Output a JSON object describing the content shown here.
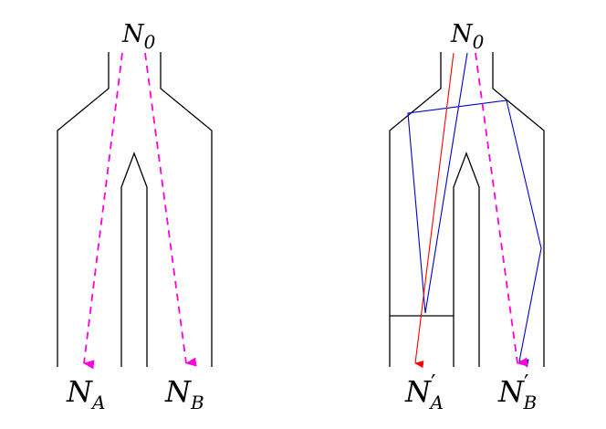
{
  "colors": {
    "walls": "#000000",
    "dashed_ray": "#ff00dd",
    "red_ray": "#ff0000",
    "blue_ray": "#0000cc"
  },
  "left_panel": {
    "source_label": {
      "base": "N",
      "sub": "0"
    },
    "detector_a_label": {
      "base": "N",
      "sub": "A"
    },
    "detector_b_label": {
      "base": "N",
      "sub": "B"
    }
  },
  "right_panel": {
    "source_label": {
      "base": "N",
      "sub": "0"
    },
    "detector_a_label": {
      "base": "N",
      "prime": "′",
      "sub": "A"
    },
    "detector_b_label": {
      "base": "N",
      "prime": "′",
      "sub": "B"
    }
  }
}
